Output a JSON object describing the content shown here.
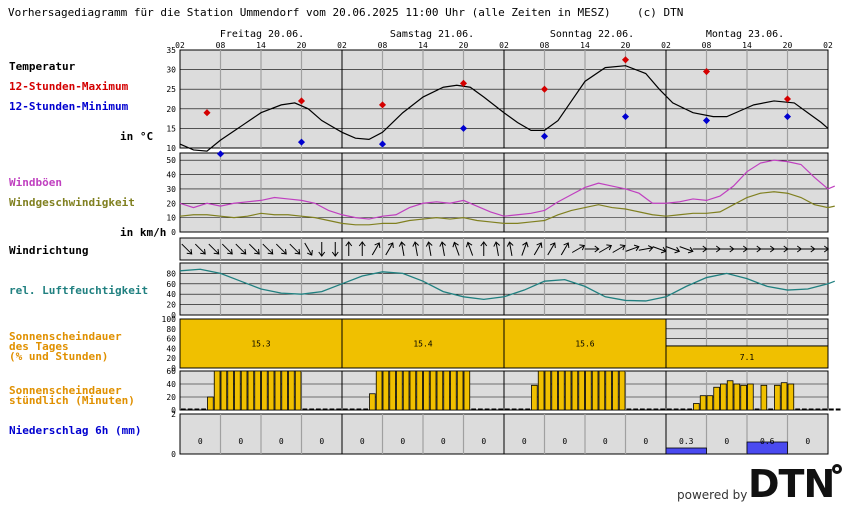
{
  "header": {
    "title": "Vorhersagediagramm für die Station Ummendorf vom 20.06.2025 11:00 Uhr (alle Zeiten in MESZ)",
    "copyright": "(c) DTN"
  },
  "days": [
    "Freitag 20.06.",
    "Samstag 21.06.",
    "Sonntag 22.06.",
    "Montag 23.06."
  ],
  "hour_ticks": [
    "02",
    "08",
    "14",
    "20",
    "02",
    "08",
    "14",
    "20",
    "02",
    "08",
    "14",
    "20",
    "02",
    "08",
    "14",
    "20",
    "02"
  ],
  "labels": {
    "temp": "Temperatur",
    "tmax": "12-Stunden-Maximum",
    "tmin": "12-Stunden-Minimum",
    "temp_unit": "in °C",
    "gust": "Windböen",
    "wind": "Windgeschwindigkeit",
    "wind_unit": "in km/h",
    "winddir": "Windrichtung",
    "rh": "rel. Luftfeuchtigkeit",
    "sun_day_1": "Sonnenscheindauer",
    "sun_day_2": "des Tages",
    "sun_day_3": "(% und Stunden)",
    "sun_hour_1": "Sonnenscheindauer",
    "sun_hour_2": "stündlich (Minuten)",
    "precip": "Niederschlag 6h (mm)"
  },
  "footer": {
    "powered": "powered by",
    "logo": "DTN"
  },
  "colors": {
    "tmax": "#d40000",
    "tmin": "#0000d0",
    "gust": "#c040c0",
    "wind": "#808020",
    "rh": "#208080",
    "sun": "#f0c000",
    "sunday_label": "#e09000",
    "precip": "#4a4af0",
    "precip_label": "#0000d0",
    "panel": "#dcdcdc"
  },
  "chart_data": [
    {
      "type": "line",
      "name": "temperature",
      "ylim": [
        10,
        35
      ],
      "yticks": [
        10,
        15,
        20,
        25,
        30,
        35
      ],
      "x_hours": [
        0,
        6,
        12,
        18,
        24,
        30,
        36,
        42,
        48,
        54,
        60,
        66,
        72,
        78,
        84,
        90
      ],
      "temp": {
        "x": [
          0,
          3,
          6,
          12,
          18,
          22,
          24,
          28,
          30,
          36,
          42,
          48,
          50,
          54,
          60,
          66,
          72,
          78,
          84,
          90,
          96
        ],
        "y": [
          11,
          9,
          12,
          18,
          21,
          18,
          14,
          12,
          13,
          22,
          25,
          20,
          16,
          14,
          24,
          31,
          29,
          22,
          19,
          17,
          15
        ]
      },
      "temp_curve": [
        [
          0,
          11
        ],
        [
          2,
          9.5
        ],
        [
          4,
          9.2
        ],
        [
          6,
          12
        ],
        [
          9,
          15.5
        ],
        [
          12,
          19
        ],
        [
          15,
          21
        ],
        [
          17,
          21.5
        ],
        [
          19,
          20
        ],
        [
          21,
          17
        ],
        [
          24,
          14
        ],
        [
          26,
          12.5
        ],
        [
          28,
          12.2
        ],
        [
          30,
          14
        ],
        [
          33,
          19
        ],
        [
          36,
          23
        ],
        [
          39,
          25.5
        ],
        [
          41,
          26
        ],
        [
          43,
          25.5
        ],
        [
          45,
          23
        ],
        [
          48,
          19
        ],
        [
          50,
          16.5
        ],
        [
          52,
          14.5
        ],
        [
          54,
          14.5
        ],
        [
          56,
          17
        ],
        [
          58,
          22
        ],
        [
          60,
          27
        ],
        [
          63,
          30.5
        ],
        [
          66,
          31
        ],
        [
          69,
          29
        ],
        [
          71,
          25
        ],
        [
          73,
          21.5
        ],
        [
          76,
          19
        ],
        [
          79,
          18
        ],
        [
          81,
          18
        ],
        [
          83,
          19.5
        ],
        [
          85,
          21
        ],
        [
          88,
          22
        ],
        [
          91,
          21.5
        ],
        [
          93,
          19
        ],
        [
          95,
          16.5
        ],
        [
          96,
          15
        ]
      ],
      "tmax": [
        {
          "x": 4,
          "y": 19
        },
        {
          "x": 18,
          "y": 22
        },
        {
          "x": 30,
          "y": 21
        },
        {
          "x": 42,
          "y": 26.5
        },
        {
          "x": 54,
          "y": 25
        },
        {
          "x": 66,
          "y": 32.5
        },
        {
          "x": 78,
          "y": 29.5
        },
        {
          "x": 90,
          "y": 22.5
        }
      ],
      "tmin": [
        {
          "x": 6,
          "y": 8.5
        },
        {
          "x": 18,
          "y": 11.5
        },
        {
          "x": 30,
          "y": 11
        },
        {
          "x": 42,
          "y": 15
        },
        {
          "x": 54,
          "y": 13
        },
        {
          "x": 66,
          "y": 18
        },
        {
          "x": 78,
          "y": 17
        },
        {
          "x": 90,
          "y": 18
        }
      ]
    },
    {
      "type": "line",
      "name": "wind",
      "ylim": [
        0,
        55
      ],
      "yticks": [
        0,
        10,
        20,
        30,
        40,
        50
      ],
      "gust": [
        [
          0,
          20
        ],
        [
          2,
          17
        ],
        [
          4,
          20
        ],
        [
          6,
          18
        ],
        [
          8,
          20
        ],
        [
          10,
          21
        ],
        [
          12,
          22
        ],
        [
          14,
          24
        ],
        [
          16,
          23
        ],
        [
          18,
          22
        ],
        [
          20,
          20
        ],
        [
          22,
          15
        ],
        [
          24,
          12
        ],
        [
          26,
          10
        ],
        [
          28,
          9
        ],
        [
          30,
          11
        ],
        [
          32,
          12
        ],
        [
          34,
          17
        ],
        [
          36,
          20
        ],
        [
          38,
          21
        ],
        [
          40,
          20
        ],
        [
          42,
          22
        ],
        [
          44,
          18
        ],
        [
          46,
          14
        ],
        [
          48,
          11
        ],
        [
          50,
          12
        ],
        [
          52,
          13
        ],
        [
          54,
          15
        ],
        [
          56,
          21
        ],
        [
          58,
          26
        ],
        [
          60,
          31
        ],
        [
          62,
          34
        ],
        [
          64,
          32
        ],
        [
          66,
          30
        ],
        [
          68,
          27
        ],
        [
          70,
          20
        ],
        [
          72,
          20
        ],
        [
          74,
          21
        ],
        [
          76,
          23
        ],
        [
          78,
          22
        ],
        [
          80,
          25
        ],
        [
          82,
          32
        ],
        [
          84,
          42
        ],
        [
          86,
          48
        ],
        [
          88,
          50
        ],
        [
          90,
          49
        ],
        [
          92,
          47
        ],
        [
          94,
          38
        ],
        [
          96,
          30
        ],
        [
          97,
          32
        ]
      ],
      "wind": [
        [
          0,
          11
        ],
        [
          2,
          12
        ],
        [
          4,
          12
        ],
        [
          6,
          11
        ],
        [
          8,
          10
        ],
        [
          10,
          11
        ],
        [
          12,
          13
        ],
        [
          14,
          12
        ],
        [
          16,
          12
        ],
        [
          18,
          11
        ],
        [
          20,
          10
        ],
        [
          22,
          8
        ],
        [
          24,
          6
        ],
        [
          26,
          5
        ],
        [
          28,
          5
        ],
        [
          30,
          6
        ],
        [
          32,
          6
        ],
        [
          34,
          8
        ],
        [
          36,
          9
        ],
        [
          38,
          10
        ],
        [
          40,
          9
        ],
        [
          42,
          10
        ],
        [
          44,
          8
        ],
        [
          46,
          7
        ],
        [
          48,
          6
        ],
        [
          50,
          6
        ],
        [
          52,
          7
        ],
        [
          54,
          8
        ],
        [
          56,
          12
        ],
        [
          58,
          15
        ],
        [
          60,
          17
        ],
        [
          62,
          19
        ],
        [
          64,
          17
        ],
        [
          66,
          16
        ],
        [
          68,
          14
        ],
        [
          70,
          12
        ],
        [
          72,
          11
        ],
        [
          74,
          12
        ],
        [
          76,
          13
        ],
        [
          78,
          13
        ],
        [
          80,
          14
        ],
        [
          82,
          19
        ],
        [
          84,
          24
        ],
        [
          86,
          27
        ],
        [
          88,
          28
        ],
        [
          90,
          27
        ],
        [
          92,
          24
        ],
        [
          94,
          19
        ],
        [
          96,
          17
        ],
        [
          97,
          18
        ]
      ]
    },
    {
      "type": "line",
      "name": "humidity",
      "ylim": [
        0,
        100
      ],
      "yticks": [
        0,
        20,
        40,
        60,
        80
      ],
      "rh": [
        [
          0,
          85
        ],
        [
          3,
          88
        ],
        [
          6,
          80
        ],
        [
          9,
          65
        ],
        [
          12,
          50
        ],
        [
          15,
          42
        ],
        [
          18,
          40
        ],
        [
          21,
          45
        ],
        [
          24,
          60
        ],
        [
          27,
          75
        ],
        [
          30,
          83
        ],
        [
          33,
          80
        ],
        [
          36,
          65
        ],
        [
          39,
          45
        ],
        [
          42,
          35
        ],
        [
          45,
          30
        ],
        [
          48,
          35
        ],
        [
          51,
          48
        ],
        [
          54,
          65
        ],
        [
          57,
          68
        ],
        [
          60,
          55
        ],
        [
          63,
          35
        ],
        [
          66,
          28
        ],
        [
          69,
          27
        ],
        [
          72,
          35
        ],
        [
          75,
          55
        ],
        [
          78,
          72
        ],
        [
          81,
          80
        ],
        [
          84,
          70
        ],
        [
          87,
          55
        ],
        [
          90,
          48
        ],
        [
          93,
          50
        ],
        [
          96,
          60
        ],
        [
          97,
          65
        ]
      ]
    },
    {
      "type": "bar",
      "name": "sunshine-daily",
      "ylim": [
        0,
        100
      ],
      "yticks": [
        0,
        20,
        40,
        60,
        80,
        100
      ],
      "categories": [
        "Freitag 20.06.",
        "Samstag 21.06.",
        "Sonntag 22.06.",
        "Montag 23.06."
      ],
      "percent": [
        100,
        100,
        100,
        45
      ],
      "labels": [
        "15.3",
        "15.4",
        "15.6",
        "7.1"
      ]
    },
    {
      "type": "bar",
      "name": "sunshine-hourly",
      "ylim": [
        0,
        60
      ],
      "yticks": [
        0,
        20,
        40,
        60
      ],
      "hour_index_start": 0,
      "minutes": [
        0,
        0,
        0,
        0,
        20,
        60,
        60,
        60,
        60,
        60,
        60,
        60,
        60,
        60,
        60,
        60,
        60,
        60,
        0,
        0,
        0,
        0,
        0,
        0,
        0,
        0,
        0,
        0,
        25,
        60,
        60,
        60,
        60,
        60,
        60,
        60,
        60,
        60,
        60,
        60,
        60,
        60,
        60,
        0,
        0,
        0,
        0,
        0,
        0,
        0,
        0,
        0,
        38,
        60,
        60,
        60,
        60,
        60,
        60,
        60,
        60,
        60,
        60,
        60,
        60,
        60,
        0,
        0,
        0,
        0,
        0,
        0,
        0,
        0,
        0,
        0,
        10,
        22,
        22,
        35,
        40,
        45,
        40,
        38,
        40,
        0,
        38,
        0,
        38,
        42,
        40,
        0,
        0,
        0,
        0,
        0,
        0,
        0
      ]
    },
    {
      "type": "bar",
      "name": "precipitation",
      "ylim": [
        0,
        2
      ],
      "yticks": [
        0,
        2
      ],
      "values": [
        0,
        0,
        0,
        0,
        0,
        0,
        0,
        0,
        0,
        0,
        0,
        0,
        0.3,
        0,
        0.6,
        0
      ],
      "labels": [
        "0",
        "0",
        "0",
        "0",
        "0",
        "0",
        "0",
        "0",
        "0",
        "0",
        "0",
        "0",
        "0.3",
        "0",
        "0.6",
        "0"
      ]
    }
  ]
}
